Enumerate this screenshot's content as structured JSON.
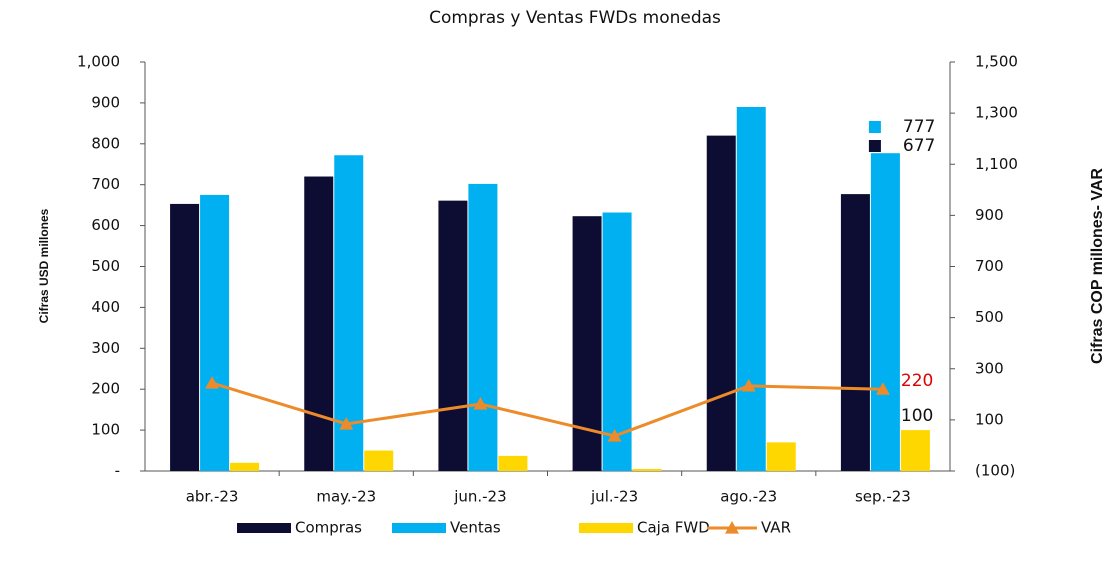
{
  "chart_data": {
    "type": "bar",
    "title": "Compras y Ventas FWDs monedas",
    "ylabel": "Cifras USD millones",
    "y2label": "Cifras COP millones- VAR",
    "categories": [
      "abr.-23",
      "may.-23",
      "jun.-23",
      "jul.-23",
      "ago.-23",
      "sep.-23"
    ],
    "series": [
      {
        "name": "Compras",
        "color": "#0d0d33",
        "values": [
          653,
          720,
          661,
          623,
          820,
          677
        ],
        "value_labels": [
          null,
          null,
          null,
          null,
          null,
          "677"
        ]
      },
      {
        "name": "Ventas",
        "color": "#00b0f0",
        "values": [
          675,
          772,
          702,
          632,
          890,
          777
        ],
        "value_labels": [
          null,
          null,
          null,
          null,
          null,
          "777"
        ]
      },
      {
        "name": "Caja FWD",
        "color": "#ffd700",
        "values": [
          20,
          50,
          37,
          5,
          70,
          100
        ],
        "value_labels": [
          null,
          null,
          null,
          null,
          null,
          "100"
        ]
      },
      {
        "name": "VAR",
        "type": "line",
        "axis": "y2",
        "color": "#ed8b2a",
        "values": [
          244,
          84,
          162,
          37,
          233,
          220
        ],
        "value_labels": [
          null,
          null,
          null,
          null,
          null,
          "220"
        ]
      }
    ],
    "ylim": [
      0,
      1000
    ],
    "yticks": [
      {
        "value": 0,
        "label": "-"
      },
      100,
      200,
      300,
      400,
      500,
      600,
      700,
      800,
      900,
      {
        "value": 1000,
        "label": "1,000"
      }
    ],
    "y2lim": [
      -100,
      1500
    ],
    "y2ticks": [
      {
        "value": -100,
        "label": "(100)"
      },
      100,
      300,
      500,
      700,
      900,
      {
        "value": 1100,
        "label": "1,100"
      },
      {
        "value": 1300,
        "label": "1,300"
      },
      {
        "value": 1500,
        "label": "1,500"
      }
    ],
    "legend": "bottom",
    "grid": false
  }
}
